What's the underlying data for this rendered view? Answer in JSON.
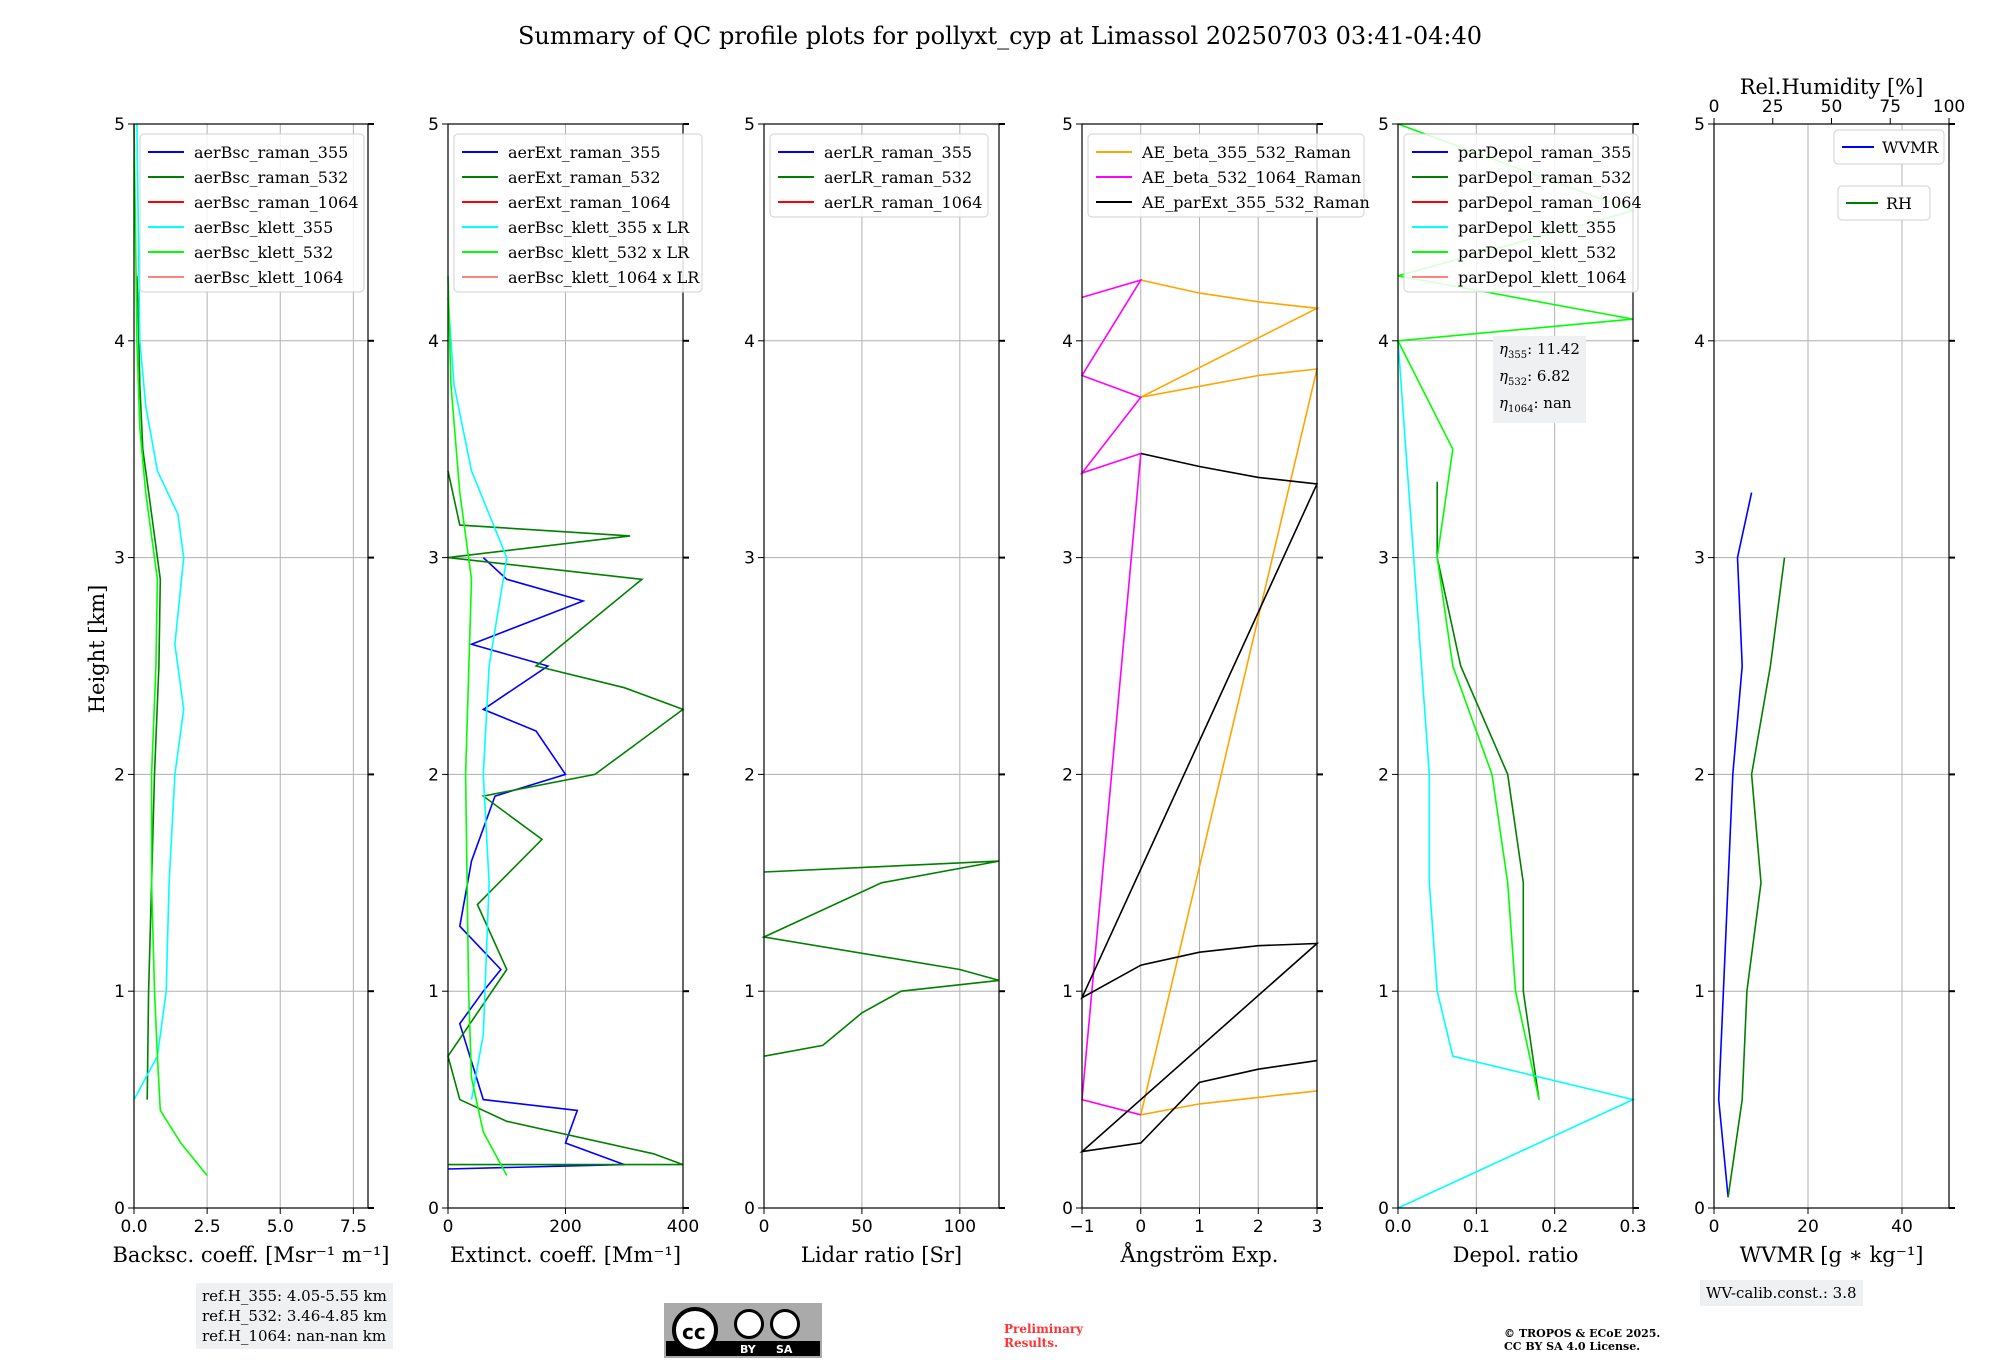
{
  "title": "Summary of QC profile plots for pollyxt_cyp at Limassol 20250703 03:41-04:40",
  "ylabel": "Height [km]",
  "yticks": [
    "0",
    "1",
    "2",
    "3",
    "4",
    "5"
  ],
  "panels": [
    {
      "xlabel": "Backsc. coeff. [Msr⁻¹ m⁻¹]",
      "xticks": [
        "0.0",
        "2.5",
        "5.0",
        "7.5"
      ],
      "legend": [
        "aerBsc_raman_355",
        "aerBsc_raman_532",
        "aerBsc_raman_1064",
        "aerBsc_klett_355",
        "aerBsc_klett_532",
        "aerBsc_klett_1064"
      ],
      "legend_colors": [
        "#0000ff",
        "#008000",
        "#ff0000",
        "#00ffff",
        "#00ff00",
        "#ff8080"
      ],
      "infobox": [
        "ref.H_355: 4.05-5.55 km",
        "ref.H_532: 3.46-4.85 km",
        "ref.H_1064: nan-nan km"
      ]
    },
    {
      "xlabel": "Extinct. coeff. [Mm⁻¹]",
      "xticks": [
        "0",
        "200",
        "400"
      ],
      "legend": [
        "aerExt_raman_355",
        "aerExt_raman_532",
        "aerExt_raman_1064",
        "aerBsc_klett_355 x LR",
        "aerBsc_klett_532 x LR",
        "aerBsc_klett_1064 x LR"
      ],
      "legend_colors": [
        "#0000ff",
        "#008000",
        "#ff0000",
        "#00ffff",
        "#00ff00",
        "#ff8080"
      ]
    },
    {
      "xlabel": "Lidar ratio [Sr]",
      "xticks": [
        "0",
        "50",
        "100"
      ],
      "legend": [
        "aerLR_raman_355",
        "aerLR_raman_532",
        "aerLR_raman_1064"
      ],
      "legend_colors": [
        "#0000ff",
        "#008000",
        "#ff0000"
      ]
    },
    {
      "xlabel": "Ångström Exp.",
      "xticks": [
        "−1",
        "0",
        "1",
        "2",
        "3"
      ],
      "legend": [
        "AE_beta_355_532_Raman",
        "AE_beta_532_1064_Raman",
        "AE_parExt_355_532_Raman"
      ],
      "legend_colors": [
        "#ffa500",
        "#ff00ff",
        "#000000"
      ]
    },
    {
      "xlabel": "Depol. ratio",
      "xticks": [
        "0.0",
        "0.1",
        "0.2",
        "0.3"
      ],
      "legend": [
        "parDepol_raman_355",
        "parDepol_raman_532",
        "parDepol_raman_1064",
        "parDepol_klett_355",
        "parDepol_klett_532",
        "parDepol_klett_1064"
      ],
      "legend_colors": [
        "#0000ff",
        "#008000",
        "#ff0000",
        "#00ffff",
        "#00ff00",
        "#ff8080"
      ],
      "eta": {
        "eta355": "11.42",
        "eta532": "6.82",
        "eta1064": "nan"
      }
    },
    {
      "xlabel": "WVMR [g ∗ kg⁻¹]",
      "xticks": [
        "0",
        "20",
        "40"
      ],
      "top_label": "Rel.Humidity [%]",
      "top_ticks": [
        "0",
        "25",
        "50",
        "75",
        "100"
      ],
      "legend_wvmr": "WVMR",
      "legend_rh": "RH",
      "legend_colors": [
        "#0000ff",
        "#008000"
      ],
      "infobox": "WV-calib.const.: 3.8"
    }
  ],
  "notices": {
    "preliminary": [
      "Preliminary",
      "Results."
    ],
    "copyright": [
      "© TROPOS & ECoE 2025.",
      "CC BY SA 4.0 License."
    ],
    "cc_badge": [
      "BY",
      "SA"
    ]
  },
  "chart_data": [
    {
      "type": "line",
      "orientation": "vertical-profile",
      "xlim": [
        0,
        8
      ],
      "ylim": [
        0,
        5
      ],
      "series": [
        {
          "name": "aerBsc_raman_532",
          "color": "#008000",
          "points": [
            [
              0.45,
              0.5
            ],
            [
              0.5,
              1.0
            ],
            [
              0.6,
              1.5
            ],
            [
              0.7,
              2.0
            ],
            [
              0.85,
              2.5
            ],
            [
              0.9,
              2.9
            ],
            [
              0.6,
              3.2
            ],
            [
              0.3,
              3.5
            ],
            [
              0.2,
              3.8
            ],
            [
              0.15,
              4.1
            ],
            [
              0.1,
              4.3
            ]
          ]
        },
        {
          "name": "aerBsc_klett_355",
          "color": "#00ffff",
          "points": [
            [
              0.0,
              0.5
            ],
            [
              0.8,
              0.7
            ],
            [
              1.1,
              1.0
            ],
            [
              1.2,
              1.5
            ],
            [
              1.4,
              2.0
            ],
            [
              1.7,
              2.3
            ],
            [
              1.4,
              2.6
            ],
            [
              1.7,
              3.0
            ],
            [
              1.5,
              3.2
            ],
            [
              0.8,
              3.4
            ],
            [
              0.4,
              3.7
            ],
            [
              0.2,
              4.0
            ],
            [
              0.15,
              4.5
            ],
            [
              0.1,
              5.0
            ]
          ]
        },
        {
          "name": "aerBsc_klett_532",
          "color": "#00ff00",
          "points": [
            [
              2.5,
              0.15
            ],
            [
              1.6,
              0.3
            ],
            [
              0.9,
              0.45
            ],
            [
              0.8,
              0.7
            ],
            [
              0.7,
              1.0
            ],
            [
              0.6,
              1.5
            ],
            [
              0.6,
              2.0
            ],
            [
              0.75,
              2.5
            ],
            [
              0.8,
              2.9
            ],
            [
              0.4,
              3.3
            ],
            [
              0.2,
              3.6
            ],
            [
              0.1,
              4.0
            ],
            [
              0.05,
              4.5
            ],
            [
              0.0,
              5.0
            ]
          ]
        }
      ]
    },
    {
      "type": "line",
      "orientation": "vertical-profile",
      "xlim": [
        0,
        400
      ],
      "ylim": [
        0,
        5
      ],
      "series": [
        {
          "name": "aerExt_raman_355",
          "color": "#0000ff",
          "points": [
            [
              0,
              0.18
            ],
            [
              300,
              0.2
            ],
            [
              200,
              0.3
            ],
            [
              220,
              0.45
            ],
            [
              60,
              0.5
            ],
            [
              20,
              0.85
            ],
            [
              60,
              1.0
            ],
            [
              90,
              1.1
            ],
            [
              20,
              1.3
            ],
            [
              40,
              1.6
            ],
            [
              80,
              1.9
            ],
            [
              200,
              2.0
            ],
            [
              150,
              2.2
            ],
            [
              60,
              2.3
            ],
            [
              170,
              2.5
            ],
            [
              40,
              2.6
            ],
            [
              230,
              2.8
            ],
            [
              100,
              2.9
            ],
            [
              60,
              3.0
            ]
          ]
        },
        {
          "name": "aerExt_raman_532",
          "color": "#008000",
          "points": [
            [
              0,
              0.2
            ],
            [
              400,
              0.2
            ],
            [
              350,
              0.25
            ],
            [
              100,
              0.4
            ],
            [
              20,
              0.5
            ],
            [
              0,
              0.7
            ],
            [
              100,
              1.1
            ],
            [
              50,
              1.4
            ],
            [
              160,
              1.7
            ],
            [
              60,
              1.9
            ],
            [
              250,
              2.0
            ],
            [
              400,
              2.3
            ],
            [
              300,
              2.4
            ],
            [
              150,
              2.5
            ],
            [
              330,
              2.9
            ],
            [
              0,
              3.0
            ],
            [
              310,
              3.1
            ],
            [
              20,
              3.15
            ],
            [
              0,
              3.4
            ]
          ]
        },
        {
          "name": "aerBsc_klett_355 x LR",
          "color": "#00ffff",
          "points": [
            [
              40,
              0.5
            ],
            [
              60,
              0.8
            ],
            [
              70,
              1.5
            ],
            [
              60,
              2.0
            ],
            [
              70,
              2.5
            ],
            [
              100,
              3.0
            ],
            [
              40,
              3.4
            ],
            [
              10,
              3.8
            ],
            [
              0,
              4.2
            ]
          ]
        },
        {
          "name": "aerBsc_klett_532 x LR",
          "color": "#00ff00",
          "points": [
            [
              100,
              0.15
            ],
            [
              60,
              0.35
            ],
            [
              40,
              0.6
            ],
            [
              35,
              1.0
            ],
            [
              30,
              2.0
            ],
            [
              40,
              2.9
            ],
            [
              20,
              3.3
            ],
            [
              5,
              3.8
            ],
            [
              0,
              4.3
            ]
          ]
        }
      ]
    },
    {
      "type": "line",
      "orientation": "vertical-profile",
      "xlim": [
        0,
        120
      ],
      "ylim": [
        0,
        5
      ],
      "series": [
        {
          "name": "aerLR_raman_532",
          "color": "#008000",
          "points": [
            [
              0,
              0.7
            ],
            [
              30,
              0.75
            ],
            [
              50,
              0.9
            ],
            [
              70,
              1.0
            ],
            [
              120,
              1.05
            ],
            [
              100,
              1.1
            ],
            [
              0,
              1.25
            ],
            [
              60,
              1.5
            ],
            [
              120,
              1.6
            ],
            [
              0,
              1.55
            ]
          ]
        }
      ]
    },
    {
      "type": "line",
      "orientation": "vertical-profile",
      "xlim": [
        -1,
        3
      ],
      "ylim": [
        0,
        5
      ],
      "series": [
        {
          "name": "AE_beta_355_532_Raman",
          "color": "#ffa500",
          "points": [
            [
              0,
              4.28
            ],
            [
              1,
              4.22
            ],
            [
              2,
              4.18
            ],
            [
              3,
              4.15
            ],
            [
              0,
              3.74
            ],
            [
              1,
              3.79
            ],
            [
              2,
              3.84
            ],
            [
              3,
              3.87
            ],
            [
              0,
              0.43
            ],
            [
              1,
              0.48
            ],
            [
              2,
              0.51
            ],
            [
              3,
              0.54
            ]
          ]
        },
        {
          "name": "AE_beta_532_1064_Raman",
          "color": "#ff00ff",
          "points": [
            [
              -1,
              4.2
            ],
            [
              0,
              4.28
            ],
            [
              -1,
              3.84
            ],
            [
              0,
              3.74
            ],
            [
              -1,
              3.39
            ],
            [
              0,
              3.48
            ],
            [
              -1,
              0.5
            ],
            [
              0,
              0.43
            ]
          ]
        },
        {
          "name": "AE_parExt_355_532_Raman",
          "color": "#000000",
          "points": [
            [
              0,
              3.48
            ],
            [
              1,
              3.42
            ],
            [
              2,
              3.37
            ],
            [
              3,
              3.34
            ],
            [
              -1,
              0.97
            ],
            [
              0,
              1.12
            ],
            [
              1,
              1.18
            ],
            [
              2,
              1.21
            ],
            [
              3,
              1.22
            ],
            [
              -1,
              0.26
            ],
            [
              0,
              0.3
            ],
            [
              1,
              0.58
            ],
            [
              2,
              0.64
            ],
            [
              3,
              0.68
            ]
          ]
        }
      ]
    },
    {
      "type": "line",
      "orientation": "vertical-profile",
      "xlim": [
        0,
        0.3
      ],
      "ylim": [
        0,
        5
      ],
      "series": [
        {
          "name": "parDepol_raman_532",
          "color": "#008000",
          "points": [
            [
              0.18,
              0.5
            ],
            [
              0.16,
              1.0
            ],
            [
              0.16,
              1.5
            ],
            [
              0.14,
              2.0
            ],
            [
              0.08,
              2.5
            ],
            [
              0.05,
              3.0
            ],
            [
              0.05,
              3.35
            ]
          ]
        },
        {
          "name": "parDepol_klett_355",
          "color": "#00ffff",
          "points": [
            [
              0.0,
              0.0
            ],
            [
              0.3,
              0.5
            ],
            [
              0.07,
              0.7
            ],
            [
              0.05,
              1.0
            ],
            [
              0.04,
              1.5
            ],
            [
              0.04,
              2.0
            ],
            [
              0.03,
              2.5
            ],
            [
              0.02,
              3.0
            ],
            [
              0.01,
              3.5
            ],
            [
              0.0,
              4.0
            ]
          ]
        },
        {
          "name": "parDepol_klett_532",
          "color": "#00ff00",
          "points": [
            [
              0.18,
              0.5
            ],
            [
              0.15,
              1.0
            ],
            [
              0.14,
              1.5
            ],
            [
              0.12,
              2.0
            ],
            [
              0.07,
              2.5
            ],
            [
              0.05,
              3.0
            ],
            [
              0.07,
              3.5
            ],
            [
              0.0,
              4.0
            ],
            [
              0.3,
              4.1
            ],
            [
              0.0,
              4.3
            ],
            [
              0.3,
              4.6
            ],
            [
              0.0,
              5.0
            ]
          ]
        }
      ]
    },
    {
      "type": "line",
      "orientation": "vertical-profile",
      "xlim": [
        0,
        50
      ],
      "ylim": [
        0,
        5
      ],
      "series": [
        {
          "name": "WVMR",
          "color": "#0000ff",
          "points": [
            [
              3,
              0.05
            ],
            [
              1,
              0.5
            ],
            [
              2,
              1.0
            ],
            [
              3,
              1.5
            ],
            [
              4,
              2.0
            ],
            [
              6,
              2.5
            ],
            [
              5,
              3.0
            ],
            [
              8,
              3.3
            ]
          ]
        },
        {
          "name": "RH",
          "color": "#008000",
          "points": [
            [
              3,
              0.05
            ],
            [
              6,
              0.5
            ],
            [
              7,
              1.0
            ],
            [
              10,
              1.5
            ],
            [
              8,
              2.0
            ],
            [
              12,
              2.5
            ],
            [
              15,
              3.0
            ]
          ]
        }
      ]
    }
  ]
}
